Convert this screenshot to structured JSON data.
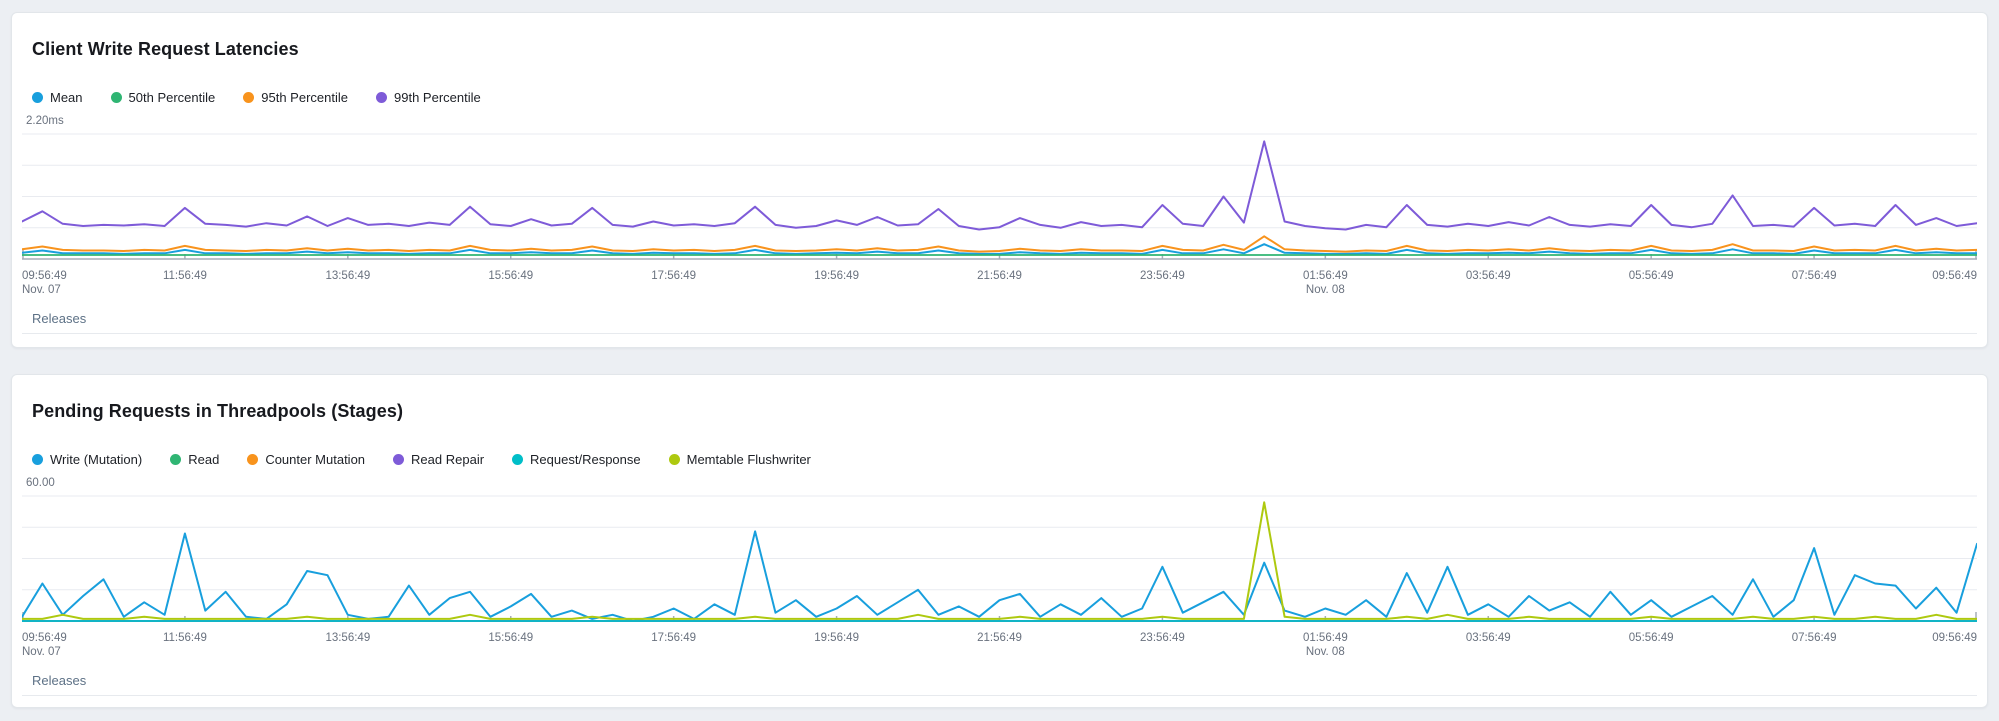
{
  "page": {
    "background": "#eceff3"
  },
  "panels": [
    {
      "title": "Client Write Request Latencies",
      "releases_label": "Releases"
    },
    {
      "title": "Pending Requests in Threadpools (Stages)",
      "releases_label": "Releases"
    }
  ],
  "chart_data": [
    {
      "type": "line",
      "title": "Client Write Request Latencies",
      "y_axis_top_label": "2.20ms",
      "y_unit": "ms",
      "ylim": [
        0,
        2.2
      ],
      "grid_interval": 0.55,
      "grid": true,
      "legend_position": "top",
      "x_range": [
        "09:56:49 Nov. 07",
        "09:56:49 Nov. 08"
      ],
      "x_ticks": [
        {
          "label": "09:56:49",
          "sublabel": "Nov. 07"
        },
        {
          "label": "11:56:49"
        },
        {
          "label": "13:56:49"
        },
        {
          "label": "15:56:49"
        },
        {
          "label": "17:56:49"
        },
        {
          "label": "19:56:49"
        },
        {
          "label": "21:56:49"
        },
        {
          "label": "23:56:49"
        },
        {
          "label": "01:56:49",
          "sublabel": "Nov. 08"
        },
        {
          "label": "03:56:49"
        },
        {
          "label": "05:56:49"
        },
        {
          "label": "07:56:49"
        },
        {
          "label": "09:56:49"
        }
      ],
      "series": [
        {
          "name": "Mean",
          "color": "#189FDD",
          "values": [
            0.11,
            0.15,
            0.1,
            0.1,
            0.1,
            0.09,
            0.1,
            0.1,
            0.16,
            0.1,
            0.1,
            0.09,
            0.1,
            0.1,
            0.13,
            0.1,
            0.12,
            0.1,
            0.1,
            0.09,
            0.1,
            0.1,
            0.16,
            0.1,
            0.1,
            0.12,
            0.1,
            0.1,
            0.15,
            0.1,
            0.09,
            0.11,
            0.1,
            0.1,
            0.09,
            0.1,
            0.16,
            0.1,
            0.09,
            0.1,
            0.11,
            0.1,
            0.13,
            0.1,
            0.1,
            0.15,
            0.1,
            0.09,
            0.09,
            0.12,
            0.1,
            0.09,
            0.11,
            0.1,
            0.1,
            0.09,
            0.16,
            0.1,
            0.1,
            0.17,
            0.1,
            0.26,
            0.11,
            0.1,
            0.09,
            0.09,
            0.1,
            0.09,
            0.16,
            0.1,
            0.09,
            0.1,
            0.1,
            0.11,
            0.1,
            0.13,
            0.1,
            0.09,
            0.1,
            0.1,
            0.16,
            0.1,
            0.09,
            0.1,
            0.17,
            0.1,
            0.1,
            0.09,
            0.15,
            0.1,
            0.1,
            0.1,
            0.16,
            0.1,
            0.12,
            0.1,
            0.1
          ]
        },
        {
          "name": "50th Percentile",
          "color": "#2FB573",
          "values": 0.07
        },
        {
          "name": "95th Percentile",
          "color": "#F8931D",
          "values": [
            0.17,
            0.22,
            0.16,
            0.15,
            0.15,
            0.14,
            0.16,
            0.15,
            0.23,
            0.16,
            0.15,
            0.14,
            0.16,
            0.15,
            0.19,
            0.15,
            0.18,
            0.15,
            0.16,
            0.14,
            0.16,
            0.15,
            0.23,
            0.16,
            0.15,
            0.18,
            0.15,
            0.16,
            0.22,
            0.15,
            0.14,
            0.17,
            0.15,
            0.16,
            0.14,
            0.16,
            0.23,
            0.15,
            0.14,
            0.15,
            0.17,
            0.15,
            0.19,
            0.15,
            0.16,
            0.22,
            0.15,
            0.13,
            0.14,
            0.18,
            0.15,
            0.14,
            0.17,
            0.15,
            0.15,
            0.14,
            0.23,
            0.16,
            0.15,
            0.25,
            0.16,
            0.4,
            0.17,
            0.15,
            0.14,
            0.13,
            0.15,
            0.14,
            0.23,
            0.15,
            0.14,
            0.16,
            0.15,
            0.17,
            0.15,
            0.19,
            0.15,
            0.14,
            0.16,
            0.15,
            0.23,
            0.15,
            0.14,
            0.16,
            0.26,
            0.15,
            0.15,
            0.14,
            0.22,
            0.15,
            0.16,
            0.15,
            0.23,
            0.15,
            0.18,
            0.15,
            0.16
          ]
        },
        {
          "name": "99th Percentile",
          "color": "#7E5BD8",
          "values": [
            0.66,
            0.84,
            0.62,
            0.58,
            0.6,
            0.59,
            0.61,
            0.58,
            0.9,
            0.62,
            0.6,
            0.57,
            0.63,
            0.59,
            0.75,
            0.58,
            0.72,
            0.6,
            0.62,
            0.58,
            0.64,
            0.6,
            0.92,
            0.61,
            0.58,
            0.7,
            0.59,
            0.62,
            0.9,
            0.6,
            0.57,
            0.66,
            0.59,
            0.61,
            0.58,
            0.63,
            0.92,
            0.6,
            0.55,
            0.58,
            0.68,
            0.6,
            0.74,
            0.59,
            0.61,
            0.88,
            0.58,
            0.52,
            0.56,
            0.72,
            0.6,
            0.55,
            0.65,
            0.58,
            0.6,
            0.56,
            0.95,
            0.62,
            0.58,
            1.1,
            0.64,
            2.07,
            0.66,
            0.58,
            0.54,
            0.52,
            0.6,
            0.56,
            0.95,
            0.6,
            0.57,
            0.62,
            0.58,
            0.65,
            0.59,
            0.74,
            0.6,
            0.57,
            0.61,
            0.58,
            0.95,
            0.6,
            0.56,
            0.62,
            1.12,
            0.58,
            0.6,
            0.57,
            0.9,
            0.59,
            0.62,
            0.58,
            0.95,
            0.6,
            0.72,
            0.58,
            0.63
          ]
        }
      ]
    },
    {
      "type": "line",
      "title": "Pending Requests in Threadpools (Stages)",
      "y_axis_top_label": "60.00",
      "y_unit": "requests",
      "ylim": [
        0,
        60
      ],
      "grid_interval": 15,
      "grid": true,
      "legend_position": "top",
      "x_range": [
        "09:56:49 Nov. 07",
        "09:56:49 Nov. 08"
      ],
      "x_ticks": [
        {
          "label": "09:56:49",
          "sublabel": "Nov. 07"
        },
        {
          "label": "11:56:49"
        },
        {
          "label": "13:56:49"
        },
        {
          "label": "15:56:49"
        },
        {
          "label": "17:56:49"
        },
        {
          "label": "19:56:49"
        },
        {
          "label": "21:56:49"
        },
        {
          "label": "23:56:49"
        },
        {
          "label": "01:56:49",
          "sublabel": "Nov. 08"
        },
        {
          "label": "03:56:49"
        },
        {
          "label": "05:56:49"
        },
        {
          "label": "07:56:49"
        },
        {
          "label": "09:56:49"
        }
      ],
      "series": [
        {
          "name": "Write (Mutation)",
          "color": "#189FDD",
          "values": [
            2,
            18,
            3,
            12,
            20,
            2,
            9,
            3,
            42,
            5,
            14,
            2,
            1,
            8,
            24,
            22,
            3,
            1,
            2,
            17,
            3,
            11,
            14,
            2,
            7,
            13,
            2,
            5,
            1,
            3,
            0,
            2,
            6,
            1,
            8,
            3,
            43,
            4,
            10,
            2,
            6,
            12,
            3,
            9,
            15,
            3,
            7,
            2,
            10,
            13,
            2,
            8,
            3,
            11,
            2,
            6,
            26,
            4,
            9,
            14,
            3,
            28,
            5,
            2,
            6,
            3,
            10,
            2,
            23,
            4,
            26,
            3,
            8,
            2,
            12,
            5,
            9,
            2,
            14,
            3,
            10,
            2,
            7,
            12,
            3,
            20,
            2,
            10,
            35,
            3,
            22,
            18,
            17,
            6,
            16,
            4,
            37
          ]
        },
        {
          "name": "Read",
          "color": "#2FB573",
          "values": 0
        },
        {
          "name": "Counter Mutation",
          "color": "#F8931D",
          "values": 0
        },
        {
          "name": "Read Repair",
          "color": "#7E5BD8",
          "values": 0
        },
        {
          "name": "Request/Response",
          "color": "#00BEC8",
          "values": 0
        },
        {
          "name": "Memtable Flushwriter",
          "color": "#AEC90F",
          "values": [
            1,
            1,
            3,
            1,
            1,
            1,
            2,
            1,
            1,
            1,
            1,
            1,
            1,
            1,
            2,
            1,
            1,
            1,
            1,
            1,
            1,
            1,
            3,
            1,
            1,
            1,
            1,
            1,
            2,
            1,
            1,
            1,
            1,
            1,
            1,
            1,
            2,
            1,
            1,
            1,
            1,
            1,
            1,
            1,
            3,
            1,
            1,
            1,
            1,
            2,
            1,
            1,
            1,
            1,
            1,
            1,
            2,
            1,
            1,
            1,
            1,
            57,
            2,
            1,
            1,
            1,
            1,
            1,
            2,
            1,
            3,
            1,
            1,
            1,
            2,
            1,
            1,
            1,
            1,
            1,
            2,
            1,
            1,
            1,
            1,
            2,
            1,
            1,
            2,
            1,
            1,
            2,
            1,
            1,
            3,
            1,
            1
          ]
        }
      ]
    }
  ]
}
